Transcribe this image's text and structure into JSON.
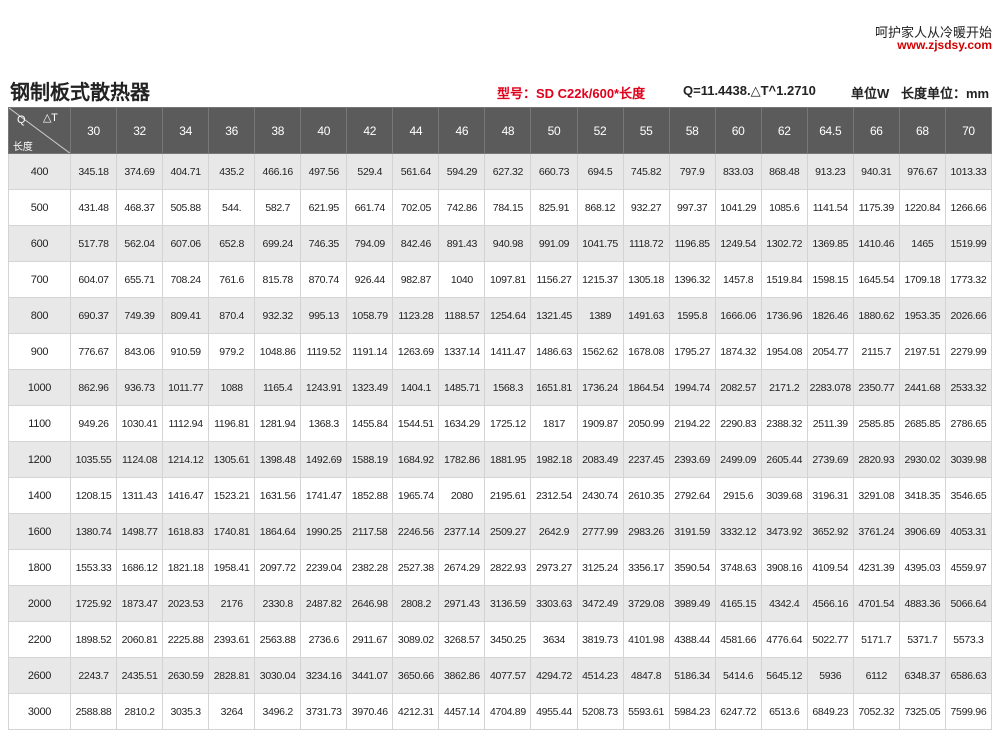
{
  "header": {
    "slogan": "呵护家人从冷暖开始",
    "website": "www.zjsdsy.com",
    "title": "钢制板式散热器",
    "model": "型号：SD  C22k/600*长度",
    "formula": "Q=11.4438.△T^1.2710",
    "unit": "单位W",
    "length_unit": "长度单位：mm"
  },
  "table": {
    "corner": {
      "q": "Q",
      "dt": "△T",
      "length": "长度"
    },
    "columns": [
      "30",
      "32",
      "34",
      "36",
      "38",
      "40",
      "42",
      "44",
      "46",
      "48",
      "50",
      "52",
      "55",
      "58",
      "60",
      "62",
      "64.5",
      "66",
      "68",
      "70"
    ],
    "rows": [
      [
        "400",
        "345.18",
        "374.69",
        "404.71",
        "435.2",
        "466.16",
        "497.56",
        "529.4",
        "561.64",
        "594.29",
        "627.32",
        "660.73",
        "694.5",
        "745.82",
        "797.9",
        "833.03",
        "868.48",
        "913.23",
        "940.31",
        "976.67",
        "1013.33"
      ],
      [
        "500",
        "431.48",
        "468.37",
        "505.88",
        "544.",
        "582.7",
        "621.95",
        "661.74",
        "702.05",
        "742.86",
        "784.15",
        "825.91",
        "868.12",
        "932.27",
        "997.37",
        "1041.29",
        "1085.6",
        "1141.54",
        "1175.39",
        "1220.84",
        "1266.66"
      ],
      [
        "600",
        "517.78",
        "562.04",
        "607.06",
        "652.8",
        "699.24",
        "746.35",
        "794.09",
        "842.46",
        "891.43",
        "940.98",
        "991.09",
        "1041.75",
        "1118.72",
        "1196.85",
        "1249.54",
        "1302.72",
        "1369.85",
        "1410.46",
        "1465",
        "1519.99"
      ],
      [
        "700",
        "604.07",
        "655.71",
        "708.24",
        "761.6",
        "815.78",
        "870.74",
        "926.44",
        "982.87",
        "1040",
        "1097.81",
        "1156.27",
        "1215.37",
        "1305.18",
        "1396.32",
        "1457.8",
        "1519.84",
        "1598.15",
        "1645.54",
        "1709.18",
        "1773.32"
      ],
      [
        "800",
        "690.37",
        "749.39",
        "809.41",
        "870.4",
        "932.32",
        "995.13",
        "1058.79",
        "1123.28",
        "1188.57",
        "1254.64",
        "1321.45",
        "1389",
        "1491.63",
        "1595.8",
        "1666.06",
        "1736.96",
        "1826.46",
        "1880.62",
        "1953.35",
        "2026.66"
      ],
      [
        "900",
        "776.67",
        "843.06",
        "910.59",
        "979.2",
        "1048.86",
        "1119.52",
        "1191.14",
        "1263.69",
        "1337.14",
        "1411.47",
        "1486.63",
        "1562.62",
        "1678.08",
        "1795.27",
        "1874.32",
        "1954.08",
        "2054.77",
        "2115.7",
        "2197.51",
        "2279.99"
      ],
      [
        "1000",
        "862.96",
        "936.73",
        "1011.77",
        "1088",
        "1165.4",
        "1243.91",
        "1323.49",
        "1404.1",
        "1485.71",
        "1568.3",
        "1651.81",
        "1736.24",
        "1864.54",
        "1994.74",
        "2082.57",
        "2171.2",
        "2283.078",
        "2350.77",
        "2441.68",
        "2533.32"
      ],
      [
        "1100",
        "949.26",
        "1030.41",
        "1112.94",
        "1196.81",
        "1281.94",
        "1368.3",
        "1455.84",
        "1544.51",
        "1634.29",
        "1725.12",
        "1817",
        "1909.87",
        "2050.99",
        "2194.22",
        "2290.83",
        "2388.32",
        "2511.39",
        "2585.85",
        "2685.85",
        "2786.65"
      ],
      [
        "1200",
        "1035.55",
        "1124.08",
        "1214.12",
        "1305.61",
        "1398.48",
        "1492.69",
        "1588.19",
        "1684.92",
        "1782.86",
        "1881.95",
        "1982.18",
        "2083.49",
        "2237.45",
        "2393.69",
        "2499.09",
        "2605.44",
        "2739.69",
        "2820.93",
        "2930.02",
        "3039.98"
      ],
      [
        "1400",
        "1208.15",
        "1311.43",
        "1416.47",
        "1523.21",
        "1631.56",
        "1741.47",
        "1852.88",
        "1965.74",
        "2080",
        "2195.61",
        "2312.54",
        "2430.74",
        "2610.35",
        "2792.64",
        "2915.6",
        "3039.68",
        "3196.31",
        "3291.08",
        "3418.35",
        "3546.65"
      ],
      [
        "1600",
        "1380.74",
        "1498.77",
        "1618.83",
        "1740.81",
        "1864.64",
        "1990.25",
        "2117.58",
        "2246.56",
        "2377.14",
        "2509.27",
        "2642.9",
        "2777.99",
        "2983.26",
        "3191.59",
        "3332.12",
        "3473.92",
        "3652.92",
        "3761.24",
        "3906.69",
        "4053.31"
      ],
      [
        "1800",
        "1553.33",
        "1686.12",
        "1821.18",
        "1958.41",
        "2097.72",
        "2239.04",
        "2382.28",
        "2527.38",
        "2674.29",
        "2822.93",
        "2973.27",
        "3125.24",
        "3356.17",
        "3590.54",
        "3748.63",
        "3908.16",
        "4109.54",
        "4231.39",
        "4395.03",
        "4559.97"
      ],
      [
        "2000",
        "1725.92",
        "1873.47",
        "2023.53",
        "2176",
        "2330.8",
        "2487.82",
        "2646.98",
        "2808.2",
        "2971.43",
        "3136.59",
        "3303.63",
        "3472.49",
        "3729.08",
        "3989.49",
        "4165.15",
        "4342.4",
        "4566.16",
        "4701.54",
        "4883.36",
        "5066.64"
      ],
      [
        "2200",
        "1898.52",
        "2060.81",
        "2225.88",
        "2393.61",
        "2563.88",
        "2736.6",
        "2911.67",
        "3089.02",
        "3268.57",
        "3450.25",
        "3634",
        "3819.73",
        "4101.98",
        "4388.44",
        "4581.66",
        "4776.64",
        "5022.77",
        "5171.7",
        "5371.7",
        "5573.3"
      ],
      [
        "2600",
        "2243.7",
        "2435.51",
        "2630.59",
        "2828.81",
        "3030.04",
        "3234.16",
        "3441.07",
        "3650.66",
        "3862.86",
        "4077.57",
        "4294.72",
        "4514.23",
        "4847.8",
        "5186.34",
        "5414.6",
        "5645.12",
        "5936",
        "6112",
        "6348.37",
        "6586.63"
      ],
      [
        "3000",
        "2588.88",
        "2810.2",
        "3035.3",
        "3264",
        "3496.2",
        "3731.73",
        "3970.46",
        "4212.31",
        "4457.14",
        "4704.89",
        "4955.44",
        "5208.73",
        "5593.61",
        "5984.23",
        "6247.72",
        "6513.6",
        "6849.23",
        "7052.32",
        "7325.05",
        "7599.96"
      ]
    ]
  }
}
